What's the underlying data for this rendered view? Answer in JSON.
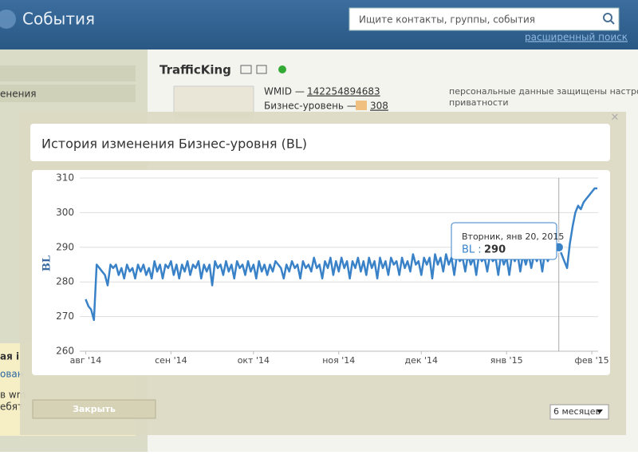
{
  "header": {
    "logo": "События",
    "search_placeholder": "Ищите контакты, группы, события",
    "advanced_search": "расширенный поиск"
  },
  "sidebar": {
    "item": "енения",
    "promo": [
      "ая і",
      "ован",
      "в wm",
      "ебят"
    ]
  },
  "profile": {
    "name": "TrafficKing",
    "wmid_label": "WMID —",
    "wmid": "142254894683",
    "bl_label": "Бизнес-уровень —",
    "bl": "308",
    "privacy": [
      "персональные данные защищены настройкой",
      "приватности"
    ]
  },
  "modal": {
    "close": "×",
    "title": "История изменения Бизнес-уровня (BL)",
    "close_button": "Закрыть",
    "period": "6 месяцев"
  },
  "chart_data": {
    "type": "line",
    "y_label": "BL",
    "series": [
      {
        "name": "BL",
        "color": "#3a82c8",
        "values": [
          275,
          273,
          272,
          269,
          285,
          284,
          283,
          282,
          279,
          285,
          284,
          285,
          282,
          284,
          281,
          285,
          283,
          284,
          281,
          285,
          283,
          285,
          282,
          284,
          281,
          286,
          283,
          285,
          281,
          285,
          284,
          286,
          282,
          285,
          281,
          285,
          283,
          286,
          282,
          285,
          284,
          286,
          281,
          285,
          283,
          285,
          279,
          286,
          284,
          285,
          282,
          286,
          283,
          285,
          281,
          286,
          284,
          285,
          282,
          286,
          283,
          285,
          281,
          286,
          283,
          285,
          282,
          285,
          283,
          286,
          285,
          284,
          281,
          285,
          283,
          286,
          284,
          285,
          281,
          286,
          284,
          285,
          283,
          287,
          284,
          285,
          281,
          286,
          284,
          287,
          282,
          286,
          283,
          287,
          284,
          286,
          281,
          286,
          284,
          287,
          283,
          286,
          282,
          287,
          284,
          286,
          281,
          287,
          284,
          286,
          282,
          287,
          285,
          286,
          282,
          287,
          284,
          286,
          283,
          288,
          285,
          286,
          282,
          287,
          285,
          287,
          281,
          288,
          285,
          287,
          283,
          288,
          285,
          287,
          282,
          288,
          286,
          287,
          283,
          288,
          285,
          287,
          282,
          288,
          286,
          287,
          283,
          288,
          286,
          287,
          282,
          288,
          285,
          287,
          282,
          288,
          286,
          288,
          283,
          288,
          285,
          288,
          284,
          288,
          286,
          288,
          283,
          289,
          286,
          288,
          287,
          289,
          290,
          288,
          286,
          284,
          291,
          296,
          300,
          302,
          301,
          303,
          304,
          305,
          306,
          307,
          307
        ]
      }
    ],
    "xlim": [
      -1,
      186
    ],
    "xticks": [
      {
        "value": 0,
        "label": "авг '14"
      },
      {
        "value": 31,
        "label": "сен '14"
      },
      {
        "value": 61,
        "label": "окт '14"
      },
      {
        "value": 92,
        "label": "ноя '14"
      },
      {
        "value": 122,
        "label": "дек '14"
      },
      {
        "value": 153,
        "label": "янв '15"
      },
      {
        "value": 184,
        "label": "фев '15"
      }
    ],
    "ylim": [
      260,
      310
    ],
    "yticks": [
      260,
      270,
      280,
      290,
      300,
      310
    ],
    "grid": true,
    "tooltip": {
      "title": "Вторник, янв 20, 2015",
      "label": "BL :"
    }
  }
}
